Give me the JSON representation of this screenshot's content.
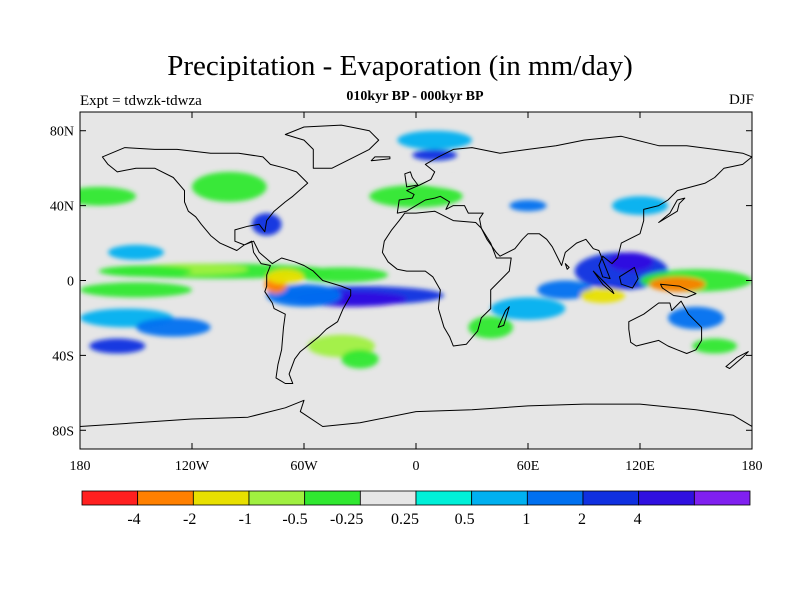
{
  "header": {
    "title": "Precipitation - Evaporation (in mm/day)",
    "subtitle": "010kyr BP - 000kyr BP",
    "experiment": "Expt = tdwzk-tdwza",
    "season": "DJF"
  },
  "map": {
    "projection": "cylindrical-equidistant",
    "lon_range": [
      -180,
      180
    ],
    "lat_range": [
      -90,
      90
    ],
    "background_color": "#e6e6e6",
    "x_ticks": [
      {
        "lon": -180,
        "label": "180"
      },
      {
        "lon": -120,
        "label": "120W"
      },
      {
        "lon": -60,
        "label": "60W"
      },
      {
        "lon": 0,
        "label": "0"
      },
      {
        "lon": 60,
        "label": "60E"
      },
      {
        "lon": 120,
        "label": "120E"
      },
      {
        "lon": 180,
        "label": "180"
      }
    ],
    "y_ticks": [
      {
        "lat": 80,
        "label": "80N"
      },
      {
        "lat": 40,
        "label": "40N"
      },
      {
        "lat": 0,
        "label": "0"
      },
      {
        "lat": -40,
        "label": "40S"
      },
      {
        "lat": -80,
        "label": "80S"
      }
    ]
  },
  "colorbar": {
    "colors": [
      "#ff2020",
      "#ff8000",
      "#e8e000",
      "#a0f040",
      "#30e830",
      "#e6e6e6",
      "#00f0d8",
      "#00b0f0",
      "#0070f0",
      "#1030e0",
      "#3010e0",
      "#8020f0"
    ],
    "labels": [
      {
        "value": "-4",
        "boundary": 1
      },
      {
        "value": "-2",
        "boundary": 2
      },
      {
        "value": "-1",
        "boundary": 3
      },
      {
        "value": "-0.5",
        "boundary": 4
      },
      {
        "value": "-0.25",
        "boundary": 5
      },
      {
        "value": "0.25",
        "boundary": 6
      },
      {
        "value": "0.5",
        "boundary": 7
      },
      {
        "value": "1",
        "boundary": 8
      },
      {
        "value": "2",
        "boundary": 9
      },
      {
        "value": "4",
        "boundary": 10
      }
    ]
  },
  "anomaly_patches": [
    {
      "lon": -105,
      "lat": 5,
      "rlon": 60,
      "rlat": 4,
      "level": 4
    },
    {
      "lon": -120,
      "lat": 6,
      "rlon": 30,
      "rlat": 3,
      "level": 3
    },
    {
      "lon": -145,
      "lat": 5,
      "rlon": 25,
      "rlat": 3,
      "level": 4
    },
    {
      "lon": -40,
      "lat": 3,
      "rlon": 25,
      "rlat": 4,
      "level": 4
    },
    {
      "lon": -30,
      "lat": -8,
      "rlon": 45,
      "rlat": 5,
      "level": 9
    },
    {
      "lon": -35,
      "lat": -10,
      "rlon": 30,
      "rlat": 4,
      "level": 10
    },
    {
      "lon": -60,
      "lat": -8,
      "rlon": 20,
      "rlat": 6,
      "level": 8
    },
    {
      "lon": -75,
      "lat": -2,
      "rlon": 6,
      "rlat": 5,
      "level": 1
    },
    {
      "lon": -70,
      "lat": 2,
      "rlon": 10,
      "rlat": 4,
      "level": 2
    },
    {
      "lon": -150,
      "lat": -5,
      "rlon": 30,
      "rlat": 4,
      "level": 4
    },
    {
      "lon": -155,
      "lat": -20,
      "rlon": 25,
      "rlat": 5,
      "level": 7
    },
    {
      "lon": -130,
      "lat": -25,
      "rlon": 20,
      "rlat": 5,
      "level": 8
    },
    {
      "lon": -160,
      "lat": -35,
      "rlon": 15,
      "rlat": 4,
      "level": 9
    },
    {
      "lon": -40,
      "lat": -35,
      "rlon": 18,
      "rlat": 6,
      "level": 3
    },
    {
      "lon": -30,
      "lat": -42,
      "rlon": 10,
      "rlat": 5,
      "level": 4
    },
    {
      "lon": 0,
      "lat": 45,
      "rlon": 25,
      "rlat": 6,
      "level": 4
    },
    {
      "lon": -100,
      "lat": 50,
      "rlon": 20,
      "rlat": 8,
      "level": 4
    },
    {
      "lon": -170,
      "lat": 45,
      "rlon": 20,
      "rlat": 5,
      "level": 4
    },
    {
      "lon": 10,
      "lat": 75,
      "rlon": 20,
      "rlat": 5,
      "level": 7
    },
    {
      "lon": 10,
      "lat": 67,
      "rlon": 12,
      "rlat": 3,
      "level": 9
    },
    {
      "lon": 20,
      "lat": 55,
      "rlon": 15,
      "rlat": 5,
      "level": 5
    },
    {
      "lon": 110,
      "lat": 5,
      "rlon": 25,
      "rlat": 10,
      "level": 9
    },
    {
      "lon": 115,
      "lat": 10,
      "rlon": 12,
      "rlat": 5,
      "level": 10
    },
    {
      "lon": 150,
      "lat": 0,
      "rlon": 30,
      "rlat": 6,
      "level": 4
    },
    {
      "lon": 140,
      "lat": -2,
      "rlon": 15,
      "rlat": 4,
      "level": 1
    },
    {
      "lon": 80,
      "lat": -5,
      "rlon": 15,
      "rlat": 5,
      "level": 8
    },
    {
      "lon": 100,
      "lat": -8,
      "rlon": 12,
      "rlat": 4,
      "level": 2
    },
    {
      "lon": 60,
      "lat": -15,
      "rlon": 20,
      "rlat": 6,
      "level": 7
    },
    {
      "lon": 40,
      "lat": -25,
      "rlon": 12,
      "rlat": 6,
      "level": 4
    },
    {
      "lon": 150,
      "lat": -20,
      "rlon": 15,
      "rlat": 6,
      "level": 8
    },
    {
      "lon": 160,
      "lat": -35,
      "rlon": 12,
      "rlat": 4,
      "level": 4
    },
    {
      "lon": 120,
      "lat": 40,
      "rlon": 15,
      "rlat": 5,
      "level": 7
    },
    {
      "lon": 60,
      "lat": 40,
      "rlon": 10,
      "rlat": 3,
      "level": 8
    },
    {
      "lon": -150,
      "lat": 15,
      "rlon": 15,
      "rlat": 4,
      "level": 7
    },
    {
      "lon": -80,
      "lat": 30,
      "rlon": 8,
      "rlat": 6,
      "level": 9
    }
  ],
  "coastlines": [
    "M -168 66 L -156 71 L -140 70 L -128 70 L -110 68 L -95 68 L -82 66 L -78 62 L -70 60 L -64 58 L -58 52 L -66 45 L -70 42 L -76 37 L -80 32 L -81 26 L -84 30 L -90 29 L -97 27 L -97 21 L -92 19 L -88 21 L -87 15 L -83 9 L -78 8 L -80 3 L -80 -3 L -81 -6 L -77 -12 L -76 -15 L -70 -18 L -71 -25 L -72 -37 L -74 -45 L -75 -52 L -70 -55 L -66 -55 L -68 -50 L -65 -42 L -62 -38 L -57 -34 L -52 -30 L -48 -26 L -42 -22 L -39 -15 L -35 -8 L -35 -5 L -40 -3 L -50 0 L -55 5 L -60 8 L -65 10 L -72 12 L -77 9 L -84 15 L -87 21 L -92 19 L -96 16 L -105 20 L -110 24 L -115 30 L -118 34 L -122 37 L -124 42 L -124 48 L -130 55 L -140 60 L -150 60 L -160 58 L -165 62 Z",
    "M -55 60 L -45 60 L -35 65 L -25 70 L -20 75 L -25 80 L -40 83 L -60 82 L -70 78 L -60 75 L -55 70 Z",
    "M -18 15 L -17 21 L -13 27 L -9 32 L -6 36 L 0 36 L 10 37 L 20 32 L 32 31 L 35 28 L 40 20 L 43 12 L 51 12 L 50 5 L 45 0 L 40 -5 L 40 -15 L 35 -20 L 33 -27 L 27 -34 L 20 -35 L 18 -30 L 15 -25 L 12 -15 L 13 -5 L 9 2 L 5 5 L -5 5 L -10 6 L -15 10 Z",
    "M -10 36 L -9 43 L -2 44 L -1 46 L -5 48 L 2 51 L 8 54 L 10 58 L 5 62 L 12 66 L 20 70 L 30 71 L 45 68 L 60 70 L 75 72 L 90 75 L 110 77 L 130 72 L 145 72 L 160 70 L 175 68 L 180 66 L 175 62 L 165 60 L 160 55 L 155 52 L 140 48 L 135 43 L 130 40 L 122 38 L 122 32 L 120 25 L 110 20 L 108 12 L 105 9 L 100 13 L 98 8 L 100 2 L 104 1 L 98 16 L 95 17 L 91 22 L 86 20 L 80 15 L 78 8 L 73 18 L 70 22 L 66 25 L 60 25 L 57 22 L 53 17 L 45 13 L 43 15 L 38 22 L 35 28 L 34 33 L 36 36 L 28 36 L 26 40 L 20 40 L 16 38 L 18 42 L 13 45 L 10 44 L 5 43 L 0 40 L -5 37 Z",
    "M 114 -22 L 122 -18 L 130 -12 L 136 -12 L 137 -16 L 142 -11 L 146 -18 L 153 -25 L 153 -32 L 150 -37 L 145 -39 L 140 -37 L 135 -35 L 130 -32 L 118 -35 L 115 -33 L 114 -26 Z",
    "M -180 -78 L -150 -76 L -120 -74 L -90 -73 L -70 -68 L -60 -64 L -62 -70 L -50 -78 L -30 -76 L 0 -70 L 30 -69 L 60 -67 L 90 -66 L 120 -66 L 150 -69 L 170 -72 L 180 -78",
    "M 95 5 L 105 -5 L 106 -7 L 100 -2 Z",
    "M 109 2 L 117 7 L 119 1 L 116 -4 L 110 -2 Z",
    "M 131 -2 L 141 -3 L 150 -7 L 145 -9 L 138 -8 L 132 -4 Z",
    "M 130 31 L 135 34 L 140 37 L 141 41 L 144 44 L 140 43 L 136 36 Z",
    "M -5 50 L 1 51 L -2 55 L -3 58 L -6 57 Z",
    "M -24 64 L -14 65 L -14 66 L -22 66 Z",
    "M 44 -25 L 48 -16 L 50 -14 L 47 -24 Z",
    "M 166 -46 L 172 -41 L 178 -38 L 175 -41 L 168 -47 Z",
    "M 80 9 L 82 7 L 81 6 Z"
  ]
}
